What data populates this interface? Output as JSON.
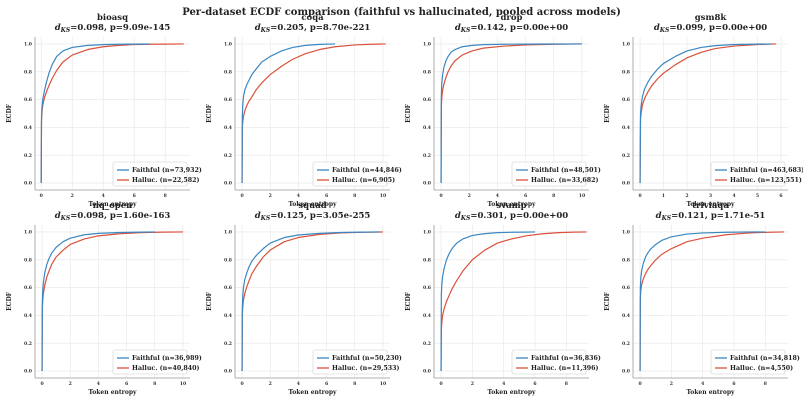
{
  "figure": {
    "title": "Per-dataset ECDF comparison (faithful vs hallucinated, pooled across models)"
  },
  "colors": {
    "faithful": "#3a87c2",
    "halluc": "#d9513b",
    "grid": "#e6e6e6",
    "axis": "#999999"
  },
  "chart_data": [
    {
      "type": "line",
      "title": "bioasq",
      "ks_label": "d",
      "ks_sub": "KS",
      "ks_rest": "=0.098, p=9.09e-145",
      "xlabel": "Token entropy",
      "ylabel": "ECDF",
      "xlim": [
        -0.4,
        9.6
      ],
      "ylim": [
        -0.05,
        1.05
      ],
      "xticks": [
        0,
        2,
        4,
        6,
        8
      ],
      "yticks": [
        0.0,
        0.2,
        0.4,
        0.6,
        0.8,
        1.0
      ],
      "grid": true,
      "legend": "lower-right",
      "series": [
        {
          "name": "Faithful (n=73,932)",
          "color": "#3a87c2",
          "x": [
            0,
            0.02,
            0.05,
            0.1,
            0.2,
            0.35,
            0.5,
            0.7,
            1.0,
            1.4,
            2.0,
            3.0,
            4.0,
            5.0,
            6.0,
            7.0
          ],
          "y": [
            0,
            0.47,
            0.54,
            0.6,
            0.66,
            0.73,
            0.79,
            0.85,
            0.91,
            0.95,
            0.975,
            0.99,
            0.995,
            0.998,
            0.999,
            1.0
          ]
        },
        {
          "name": "Halluc. (n=22,582)",
          "color": "#d9513b",
          "x": [
            0,
            0.02,
            0.05,
            0.1,
            0.2,
            0.35,
            0.5,
            0.7,
            1.0,
            1.4,
            2.0,
            3.0,
            4.0,
            5.0,
            6.0,
            7.0,
            8.0,
            9.2
          ],
          "y": [
            0,
            0.45,
            0.51,
            0.56,
            0.61,
            0.66,
            0.7,
            0.75,
            0.81,
            0.87,
            0.92,
            0.96,
            0.98,
            0.99,
            0.996,
            0.998,
            0.999,
            1.0
          ]
        }
      ]
    },
    {
      "type": "line",
      "title": "coqa",
      "ks_label": "d",
      "ks_sub": "KS",
      "ks_rest": "=0.205, p=8.70e-221",
      "xlabel": "Token entropy",
      "ylabel": "ECDF",
      "xlim": [
        -0.5,
        10.5
      ],
      "ylim": [
        -0.05,
        1.05
      ],
      "xticks": [
        0,
        2,
        4,
        6,
        8,
        10
      ],
      "yticks": [
        0.0,
        0.2,
        0.4,
        0.6,
        0.8,
        1.0
      ],
      "grid": true,
      "legend": "lower-right",
      "series": [
        {
          "name": "Faithful (n=44,846)",
          "color": "#3a87c2",
          "x": [
            0,
            0.02,
            0.05,
            0.1,
            0.2,
            0.35,
            0.5,
            0.7,
            1.0,
            1.4,
            2.0,
            2.8,
            3.6,
            4.5,
            5.5,
            6.6
          ],
          "y": [
            0,
            0.48,
            0.56,
            0.62,
            0.67,
            0.71,
            0.74,
            0.78,
            0.82,
            0.87,
            0.91,
            0.95,
            0.975,
            0.99,
            0.997,
            1.0
          ]
        },
        {
          "name": "Halluc. (n=6,905)",
          "color": "#d9513b",
          "x": [
            0,
            0.02,
            0.05,
            0.1,
            0.2,
            0.35,
            0.5,
            0.7,
            1.0,
            1.4,
            2.0,
            2.8,
            3.6,
            4.5,
            5.5,
            6.6,
            8.0,
            9.2,
            10.2
          ],
          "y": [
            0,
            0.39,
            0.44,
            0.48,
            0.52,
            0.56,
            0.59,
            0.62,
            0.67,
            0.72,
            0.78,
            0.84,
            0.89,
            0.93,
            0.96,
            0.98,
            0.993,
            0.998,
            1.0
          ]
        }
      ]
    },
    {
      "type": "line",
      "title": "drop",
      "ks_label": "d",
      "ks_sub": "KS",
      "ks_rest": "=0.142, p=0.00e+00",
      "xlabel": "Token entropy",
      "ylabel": "ECDF",
      "xlim": [
        -0.5,
        10.5
      ],
      "ylim": [
        -0.05,
        1.05
      ],
      "xticks": [
        0,
        2,
        4,
        6,
        8,
        10
      ],
      "yticks": [
        0.0,
        0.2,
        0.4,
        0.6,
        0.8,
        1.0
      ],
      "grid": true,
      "legend": "lower-right",
      "series": [
        {
          "name": "Faithful (n=48,501)",
          "color": "#3a87c2",
          "x": [
            0,
            0.02,
            0.05,
            0.1,
            0.2,
            0.35,
            0.5,
            0.7,
            1.0,
            1.5,
            2.2,
            3.0,
            4.5,
            6.0,
            8.0,
            10.0
          ],
          "y": [
            0,
            0.62,
            0.71,
            0.77,
            0.83,
            0.88,
            0.91,
            0.94,
            0.96,
            0.98,
            0.99,
            0.995,
            0.998,
            0.999,
            0.9995,
            1.0
          ]
        },
        {
          "name": "Halluc. (n=33,682)",
          "color": "#d9513b",
          "x": [
            0,
            0.02,
            0.05,
            0.1,
            0.2,
            0.35,
            0.5,
            0.7,
            1.0,
            1.5,
            2.2,
            3.0,
            4.5,
            6.0,
            8.0,
            10.0
          ],
          "y": [
            0,
            0.55,
            0.61,
            0.66,
            0.71,
            0.76,
            0.8,
            0.84,
            0.88,
            0.92,
            0.95,
            0.97,
            0.985,
            0.993,
            0.998,
            1.0
          ]
        }
      ]
    },
    {
      "type": "line",
      "title": "gsm8k",
      "ks_label": "d",
      "ks_sub": "KS",
      "ks_rest": "=0.099, p=0.00e+00",
      "xlabel": "Token entropy",
      "ylabel": "ECDF",
      "xlim": [
        -0.3,
        6.3
      ],
      "ylim": [
        -0.05,
        1.05
      ],
      "xticks": [
        0,
        1,
        2,
        3,
        4,
        5,
        6
      ],
      "yticks": [
        0.0,
        0.2,
        0.4,
        0.6,
        0.8,
        1.0
      ],
      "grid": true,
      "legend": "lower-right",
      "series": [
        {
          "name": "Faithful (n=463,683)",
          "color": "#3a87c2",
          "x": [
            0,
            0.02,
            0.05,
            0.1,
            0.2,
            0.35,
            0.5,
            0.75,
            1.0,
            1.5,
            2.0,
            2.6,
            3.2,
            4.0,
            5.0,
            5.6
          ],
          "y": [
            0,
            0.5,
            0.56,
            0.62,
            0.68,
            0.73,
            0.77,
            0.82,
            0.86,
            0.91,
            0.95,
            0.975,
            0.988,
            0.996,
            0.999,
            1.0
          ]
        },
        {
          "name": "Halluc. (n=123,551)",
          "color": "#d9513b",
          "x": [
            0,
            0.02,
            0.05,
            0.1,
            0.2,
            0.35,
            0.5,
            0.75,
            1.0,
            1.5,
            2.0,
            2.6,
            3.2,
            4.0,
            5.0,
            5.8
          ],
          "y": [
            0,
            0.46,
            0.51,
            0.56,
            0.61,
            0.66,
            0.7,
            0.75,
            0.79,
            0.85,
            0.9,
            0.94,
            0.967,
            0.985,
            0.996,
            1.0
          ]
        }
      ]
    },
    {
      "type": "line",
      "title": "nq_open",
      "ks_label": "d",
      "ks_sub": "KS",
      "ks_rest": "=0.098, p=1.60e-163",
      "xlabel": "Token entropy",
      "ylabel": "ECDF",
      "xlim": [
        -0.5,
        10.5
      ],
      "ylim": [
        -0.05,
        1.05
      ],
      "xticks": [
        0,
        2,
        4,
        6,
        8,
        10
      ],
      "yticks": [
        0.0,
        0.2,
        0.4,
        0.6,
        0.8,
        1.0
      ],
      "grid": true,
      "legend": "lower-right",
      "series": [
        {
          "name": "Faithful (n=36,989)",
          "color": "#3a87c2",
          "x": [
            0,
            0.02,
            0.05,
            0.1,
            0.2,
            0.35,
            0.5,
            0.7,
            1.0,
            1.5,
            2.0,
            3.0,
            4.0,
            5.5,
            7.0,
            8.0
          ],
          "y": [
            0,
            0.5,
            0.58,
            0.64,
            0.71,
            0.77,
            0.81,
            0.85,
            0.89,
            0.93,
            0.955,
            0.98,
            0.99,
            0.996,
            0.999,
            1.0
          ]
        },
        {
          "name": "Halluc. (n=40,840)",
          "color": "#d9513b",
          "x": [
            0,
            0.02,
            0.05,
            0.1,
            0.2,
            0.35,
            0.5,
            0.7,
            1.0,
            1.5,
            2.0,
            3.0,
            4.0,
            5.5,
            7.0,
            8.5,
            10.0
          ],
          "y": [
            0,
            0.45,
            0.51,
            0.56,
            0.62,
            0.68,
            0.72,
            0.77,
            0.82,
            0.87,
            0.91,
            0.95,
            0.972,
            0.987,
            0.995,
            0.999,
            1.0
          ]
        }
      ]
    },
    {
      "type": "line",
      "title": "squad",
      "ks_label": "d",
      "ks_sub": "KS",
      "ks_rest": "=0.125, p=3.05e-255",
      "xlabel": "Token entropy",
      "ylabel": "ECDF",
      "xlim": [
        -0.5,
        10.5
      ],
      "ylim": [
        -0.05,
        1.05
      ],
      "xticks": [
        0,
        2,
        4,
        6,
        8,
        10
      ],
      "yticks": [
        0.0,
        0.2,
        0.4,
        0.6,
        0.8,
        1.0
      ],
      "grid": true,
      "legend": "lower-right",
      "series": [
        {
          "name": "Faithful (n=50,230)",
          "color": "#3a87c2",
          "x": [
            0,
            0.02,
            0.05,
            0.1,
            0.2,
            0.35,
            0.5,
            0.7,
            1.0,
            1.5,
            2.0,
            3.0,
            4.0,
            5.5,
            7.0,
            8.5,
            9.8
          ],
          "y": [
            0,
            0.46,
            0.54,
            0.6,
            0.66,
            0.71,
            0.75,
            0.79,
            0.83,
            0.88,
            0.92,
            0.96,
            0.978,
            0.99,
            0.996,
            0.999,
            1.0
          ]
        },
        {
          "name": "Halluc. (n=29,533)",
          "color": "#d9513b",
          "x": [
            0,
            0.02,
            0.05,
            0.1,
            0.2,
            0.35,
            0.5,
            0.7,
            1.0,
            1.5,
            2.0,
            3.0,
            4.0,
            5.5,
            7.0,
            8.5,
            10.0
          ],
          "y": [
            0,
            0.4,
            0.46,
            0.51,
            0.56,
            0.61,
            0.65,
            0.7,
            0.75,
            0.82,
            0.87,
            0.93,
            0.96,
            0.982,
            0.993,
            0.998,
            1.0
          ]
        }
      ]
    },
    {
      "type": "line",
      "title": "svamp",
      "ks_label": "d",
      "ks_sub": "KS",
      "ks_rest": "=0.301, p=0.00e+00",
      "xlabel": "Token entropy",
      "ylabel": "ECDF",
      "xlim": [
        -0.45,
        9.45
      ],
      "ylim": [
        -0.05,
        1.05
      ],
      "xticks": [
        0,
        2,
        4,
        6,
        8
      ],
      "yticks": [
        0.0,
        0.2,
        0.4,
        0.6,
        0.8,
        1.0
      ],
      "grid": true,
      "legend": "lower-right",
      "series": [
        {
          "name": "Faithful (n=36,836)",
          "color": "#3a87c2",
          "x": [
            0,
            0.02,
            0.05,
            0.1,
            0.2,
            0.35,
            0.5,
            0.7,
            1.0,
            1.4,
            2.0,
            2.8,
            3.6,
            4.5,
            5.3,
            6.0
          ],
          "y": [
            0,
            0.55,
            0.62,
            0.68,
            0.74,
            0.8,
            0.84,
            0.88,
            0.92,
            0.95,
            0.975,
            0.988,
            0.995,
            0.998,
            0.999,
            1.0
          ]
        },
        {
          "name": "Halluc. (n=11,396)",
          "color": "#d9513b",
          "x": [
            0,
            0.02,
            0.05,
            0.1,
            0.2,
            0.35,
            0.5,
            0.7,
            1.0,
            1.4,
            2.0,
            2.8,
            3.6,
            4.5,
            5.5,
            6.5,
            7.5,
            8.5,
            9.3
          ],
          "y": [
            0,
            0.3,
            0.35,
            0.4,
            0.45,
            0.5,
            0.54,
            0.59,
            0.65,
            0.72,
            0.8,
            0.87,
            0.92,
            0.95,
            0.973,
            0.987,
            0.995,
            0.999,
            1.0
          ]
        }
      ]
    },
    {
      "type": "line",
      "title": "triviaqa",
      "ks_label": "d",
      "ks_sub": "KS",
      "ks_rest": "=0.121, p=1.71e-51",
      "xlabel": "Token entropy",
      "ylabel": "ECDF",
      "xlim": [
        -0.45,
        9.45
      ],
      "ylim": [
        -0.05,
        1.05
      ],
      "xticks": [
        0,
        2,
        4,
        6,
        8
      ],
      "yticks": [
        0.0,
        0.2,
        0.4,
        0.6,
        0.8,
        1.0
      ],
      "grid": true,
      "legend": "lower-right",
      "series": [
        {
          "name": "Faithful (n=34,818)",
          "color": "#3a87c2",
          "x": [
            0,
            0.02,
            0.05,
            0.1,
            0.2,
            0.35,
            0.5,
            0.7,
            1.0,
            1.4,
            2.0,
            3.0,
            4.0,
            5.5,
            7.0,
            8.0
          ],
          "y": [
            0,
            0.6,
            0.67,
            0.72,
            0.77,
            0.82,
            0.85,
            0.88,
            0.91,
            0.94,
            0.965,
            0.985,
            0.993,
            0.998,
            0.9995,
            1.0
          ]
        },
        {
          "name": "Halluc. (n=4,550)",
          "color": "#d9513b",
          "x": [
            0,
            0.02,
            0.05,
            0.1,
            0.2,
            0.35,
            0.5,
            0.7,
            1.0,
            1.4,
            2.0,
            3.0,
            4.0,
            5.5,
            7.0,
            8.2,
            9.2
          ],
          "y": [
            0,
            0.52,
            0.58,
            0.62,
            0.66,
            0.7,
            0.73,
            0.76,
            0.8,
            0.84,
            0.88,
            0.93,
            0.955,
            0.98,
            0.993,
            0.998,
            1.0
          ]
        }
      ]
    }
  ]
}
